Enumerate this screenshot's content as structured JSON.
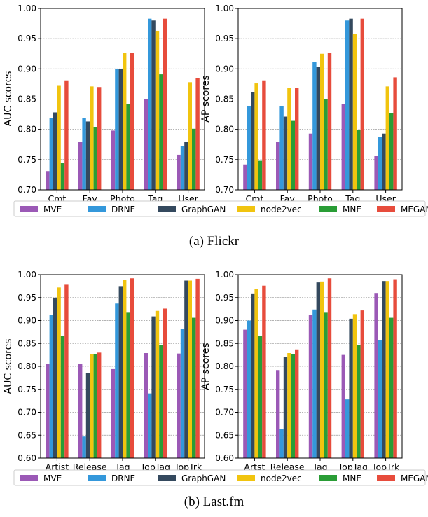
{
  "captions": [
    "(a)  Flickr",
    "(b)  Last.fm"
  ],
  "legend": {
    "entries": [
      "MVE",
      "DRNE",
      "GraphGAN",
      "node2vec",
      "MNE",
      "MEGAN"
    ],
    "colors": [
      "#9b59b6",
      "#3498db",
      "#34495e",
      "#f1c40f",
      "#2a9d36",
      "#e74c3c"
    ]
  },
  "chart_data": [
    {
      "type": "bar",
      "title": "",
      "xlabel": "",
      "ylabel": "AUC scores",
      "ylim": [
        0.7,
        1.0
      ],
      "yticks": [
        "0.70",
        "0.75",
        "0.80",
        "0.85",
        "0.90",
        "0.95",
        "1.00"
      ],
      "grid": true,
      "categories": [
        "Cmt",
        "Fav",
        "Photo",
        "Tag",
        "User"
      ],
      "series": [
        {
          "name": "MVE",
          "values": [
            0.731,
            0.779,
            0.798,
            0.85,
            0.758
          ]
        },
        {
          "name": "DRNE",
          "values": [
            0.819,
            0.819,
            0.9,
            0.983,
            0.772
          ]
        },
        {
          "name": "GraphGAN",
          "values": [
            0.828,
            0.813,
            0.9,
            0.98,
            0.779
          ]
        },
        {
          "name": "node2vec",
          "values": [
            0.872,
            0.871,
            0.926,
            0.963,
            0.878
          ]
        },
        {
          "name": "MNE",
          "values": [
            0.744,
            0.804,
            0.842,
            0.891,
            0.801
          ]
        },
        {
          "name": "MEGAN",
          "values": [
            0.881,
            0.87,
            0.927,
            0.983,
            0.885
          ]
        }
      ]
    },
    {
      "type": "bar",
      "title": "",
      "xlabel": "",
      "ylabel": "AP scores",
      "ylim": [
        0.7,
        1.0
      ],
      "yticks": [
        "0.70",
        "0.75",
        "0.80",
        "0.85",
        "0.90",
        "0.95",
        "1.00"
      ],
      "grid": true,
      "categories": [
        "Cmt",
        "Fav",
        "Photo",
        "Tag",
        "User"
      ],
      "series": [
        {
          "name": "MVE",
          "values": [
            0.742,
            0.779,
            0.793,
            0.842,
            0.756
          ]
        },
        {
          "name": "DRNE",
          "values": [
            0.839,
            0.838,
            0.911,
            0.98,
            0.787
          ]
        },
        {
          "name": "GraphGAN",
          "values": [
            0.861,
            0.821,
            0.903,
            0.983,
            0.793
          ]
        },
        {
          "name": "node2vec",
          "values": [
            0.876,
            0.868,
            0.925,
            0.958,
            0.871
          ]
        },
        {
          "name": "MNE",
          "values": [
            0.748,
            0.814,
            0.85,
            0.799,
            0.827
          ]
        },
        {
          "name": "MEGAN",
          "values": [
            0.881,
            0.869,
            0.927,
            0.983,
            0.886
          ]
        }
      ]
    },
    {
      "type": "bar",
      "title": "",
      "xlabel": "",
      "ylabel": "AUC scores",
      "ylim": [
        0.6,
        1.0
      ],
      "yticks": [
        "0.60",
        "0.65",
        "0.70",
        "0.75",
        "0.80",
        "0.85",
        "0.90",
        "0.95",
        "1.00"
      ],
      "grid": true,
      "categories": [
        "Artist",
        "Release",
        "Tag",
        "TopTag",
        "TopTrk"
      ],
      "series": [
        {
          "name": "MVE",
          "values": [
            0.806,
            0.805,
            0.794,
            0.829,
            0.828
          ]
        },
        {
          "name": "DRNE",
          "values": [
            0.912,
            0.647,
            0.937,
            0.741,
            0.881
          ]
        },
        {
          "name": "GraphGAN",
          "values": [
            0.949,
            0.786,
            0.975,
            0.909,
            0.987
          ]
        },
        {
          "name": "node2vec",
          "values": [
            0.972,
            0.826,
            0.988,
            0.921,
            0.987
          ]
        },
        {
          "name": "MNE",
          "values": [
            0.866,
            0.826,
            0.917,
            0.846,
            0.906
          ]
        },
        {
          "name": "MEGAN",
          "values": [
            0.978,
            0.83,
            0.992,
            0.926,
            0.991
          ]
        }
      ]
    },
    {
      "type": "bar",
      "title": "",
      "xlabel": "",
      "ylabel": "AP scores",
      "ylim": [
        0.6,
        1.0
      ],
      "yticks": [
        "0.60",
        "0.65",
        "0.70",
        "0.75",
        "0.80",
        "0.85",
        "0.90",
        "0.95",
        "1.00"
      ],
      "grid": true,
      "categories": [
        "Artst",
        "Release",
        "Tag",
        "TopTag",
        "TopTrk"
      ],
      "series": [
        {
          "name": "MVE",
          "values": [
            0.88,
            0.792,
            0.912,
            0.825,
            0.96
          ]
        },
        {
          "name": "DRNE",
          "values": [
            0.9,
            0.663,
            0.924,
            0.728,
            0.858
          ]
        },
        {
          "name": "GraphGAN",
          "values": [
            0.959,
            0.82,
            0.983,
            0.904,
            0.986
          ]
        },
        {
          "name": "node2vec",
          "values": [
            0.969,
            0.829,
            0.985,
            0.914,
            0.986
          ]
        },
        {
          "name": "MNE",
          "values": [
            0.866,
            0.826,
            0.917,
            0.846,
            0.906
          ]
        },
        {
          "name": "MEGAN",
          "values": [
            0.976,
            0.837,
            0.992,
            0.922,
            0.99
          ]
        }
      ]
    }
  ]
}
